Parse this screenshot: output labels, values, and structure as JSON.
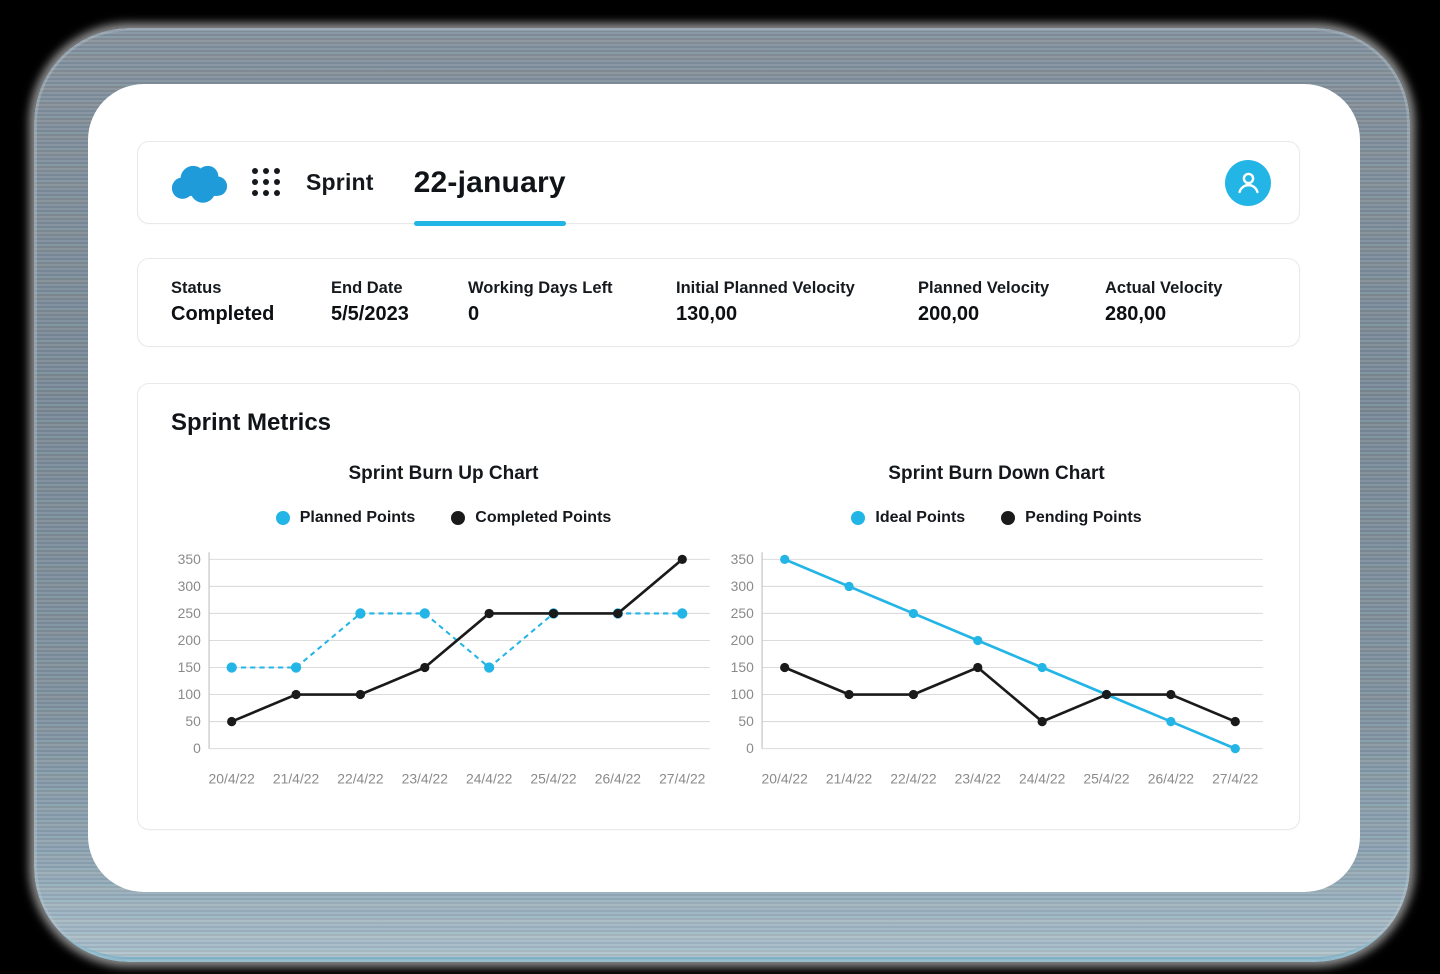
{
  "accent_color": "#22B5E6",
  "logo_color": "#1E9BD8",
  "header": {
    "logo_icon": "salesforce-cloud-logo",
    "launcher_icon": "app-launcher-grid-icon",
    "app_label": "Sprint",
    "active_tab": "22-january",
    "avatar_icon": "user-icon"
  },
  "stats": {
    "items": [
      {
        "label": "Status",
        "value": "Completed"
      },
      {
        "label": "End Date",
        "value": "5/5/2023"
      },
      {
        "label": "Working Days Left",
        "value": "0"
      },
      {
        "label": "Initial Planned Velocity",
        "value": "130,00"
      },
      {
        "label": "Planned Velocity",
        "value": "200,00"
      },
      {
        "label": "Actual Velocity",
        "value": "280,00"
      }
    ]
  },
  "metrics": {
    "title": "Sprint Metrics"
  },
  "chart_data": [
    {
      "type": "line",
      "title": "Sprint Burn Up Chart",
      "categories": [
        "20/4/22",
        "21/4/22",
        "22/4/22",
        "23/4/22",
        "24/4/22",
        "25/4/22",
        "26/4/22",
        "27/4/22"
      ],
      "series": [
        {
          "name": "Planned Points",
          "color": "#22B5E6",
          "dash": true,
          "values": [
            150,
            150,
            250,
            250,
            150,
            250,
            250,
            250
          ]
        },
        {
          "name": "Completed Points",
          "color": "#1A1A1A",
          "dash": false,
          "values": [
            50,
            100,
            100,
            150,
            250,
            250,
            250,
            350
          ]
        }
      ],
      "ylim": [
        0,
        350
      ],
      "yticks": [
        0,
        50,
        100,
        150,
        200,
        250,
        300,
        350
      ],
      "grid": true,
      "legend_position": "top"
    },
    {
      "type": "line",
      "title": "Sprint Burn Down Chart",
      "categories": [
        "20/4/22",
        "21/4/22",
        "22/4/22",
        "23/4/22",
        "24/4/22",
        "25/4/22",
        "26/4/22",
        "27/4/22"
      ],
      "series": [
        {
          "name": "Ideal Points",
          "color": "#22B5E6",
          "dash": false,
          "values": [
            350,
            300,
            250,
            200,
            150,
            100,
            50,
            0
          ]
        },
        {
          "name": "Pending Points",
          "color": "#1A1A1A",
          "dash": false,
          "values": [
            150,
            100,
            100,
            150,
            50,
            100,
            100,
            50
          ]
        }
      ],
      "ylim": [
        0,
        350
      ],
      "yticks": [
        0,
        50,
        100,
        150,
        200,
        250,
        300,
        350
      ],
      "grid": true,
      "legend_position": "top"
    }
  ]
}
